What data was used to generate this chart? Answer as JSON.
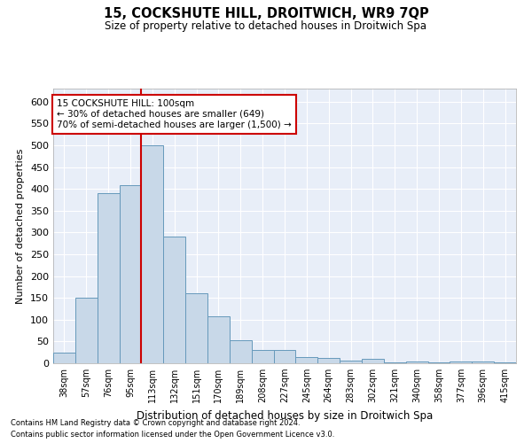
{
  "title": "15, COCKSHUTE HILL, DROITWICH, WR9 7QP",
  "subtitle": "Size of property relative to detached houses in Droitwich Spa",
  "xlabel": "Distribution of detached houses by size in Droitwich Spa",
  "ylabel": "Number of detached properties",
  "categories": [
    "38sqm",
    "57sqm",
    "76sqm",
    "95sqm",
    "113sqm",
    "132sqm",
    "151sqm",
    "170sqm",
    "189sqm",
    "208sqm",
    "227sqm",
    "245sqm",
    "264sqm",
    "283sqm",
    "302sqm",
    "321sqm",
    "340sqm",
    "358sqm",
    "377sqm",
    "396sqm",
    "415sqm"
  ],
  "values": [
    25,
    150,
    390,
    408,
    500,
    290,
    160,
    108,
    53,
    30,
    30,
    15,
    12,
    7,
    10,
    3,
    5,
    3,
    5,
    5,
    3
  ],
  "bar_color": "#c8d8e8",
  "bar_edge_color": "#6699bb",
  "vline_x": 4,
  "vline_color": "#cc0000",
  "annotation_text": "15 COCKSHUTE HILL: 100sqm\n← 30% of detached houses are smaller (649)\n70% of semi-detached houses are larger (1,500) →",
  "annotation_box_color": "#ffffff",
  "annotation_box_edge": "#cc0000",
  "ylim": [
    0,
    630
  ],
  "yticks": [
    0,
    50,
    100,
    150,
    200,
    250,
    300,
    350,
    400,
    450,
    500,
    550,
    600
  ],
  "background_color": "#e8eef8",
  "footer_line1": "Contains HM Land Registry data © Crown copyright and database right 2024.",
  "footer_line2": "Contains public sector information licensed under the Open Government Licence v3.0."
}
